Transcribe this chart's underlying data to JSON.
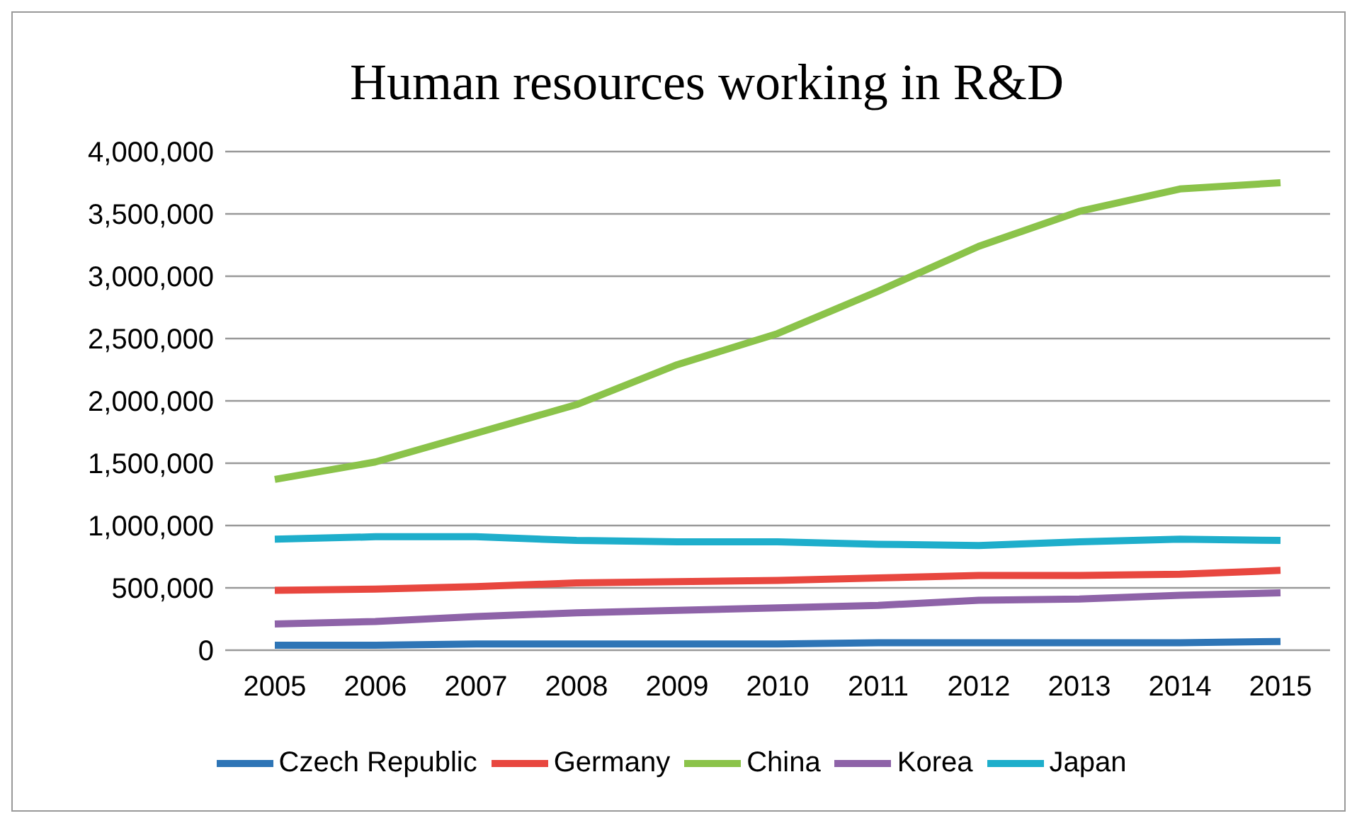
{
  "chart_data": {
    "type": "line",
    "title": "Human resources working in R&D",
    "categories": [
      "2005",
      "2006",
      "2007",
      "2008",
      "2009",
      "2010",
      "2011",
      "2012",
      "2013",
      "2014",
      "2015"
    ],
    "series": [
      {
        "name": "Czech Republic",
        "color": "#2e75b6",
        "values": [
          40000,
          40000,
          50000,
          50000,
          50000,
          50000,
          60000,
          60000,
          60000,
          60000,
          70000
        ]
      },
      {
        "name": "Germany",
        "color": "#e8473f",
        "values": [
          480000,
          490000,
          510000,
          540000,
          550000,
          560000,
          580000,
          600000,
          600000,
          610000,
          640000
        ]
      },
      {
        "name": "China",
        "color": "#8bc34a",
        "values": [
          1370000,
          1510000,
          1740000,
          1970000,
          2290000,
          2540000,
          2880000,
          3240000,
          3520000,
          3700000,
          3750000
        ]
      },
      {
        "name": "Korea",
        "color": "#8e63a8",
        "values": [
          210000,
          230000,
          270000,
          300000,
          320000,
          340000,
          360000,
          400000,
          410000,
          440000,
          460000
        ]
      },
      {
        "name": "Japan",
        "color": "#1eaecb",
        "values": [
          890000,
          910000,
          910000,
          880000,
          870000,
          870000,
          850000,
          840000,
          870000,
          890000,
          880000
        ]
      }
    ],
    "ylim": [
      0,
      4000000
    ],
    "yticks": [
      0,
      {
        "value": 500000,
        "label": "500,000"
      },
      {
        "value": 1000000,
        "label": "1,000,000"
      },
      {
        "value": 1500000,
        "label": "1,500,000"
      },
      {
        "value": 2000000,
        "label": "2,000,000"
      },
      {
        "value": 2500000,
        "label": "2,500,000"
      },
      {
        "value": 3000000,
        "label": "3,000,000"
      },
      {
        "value": 3500000,
        "label": "3,500,000"
      },
      {
        "value": 4000000,
        "label": "4,000,000"
      }
    ],
    "grid": "y",
    "legend": "bottom",
    "marker": "none",
    "line_style": "solid"
  }
}
